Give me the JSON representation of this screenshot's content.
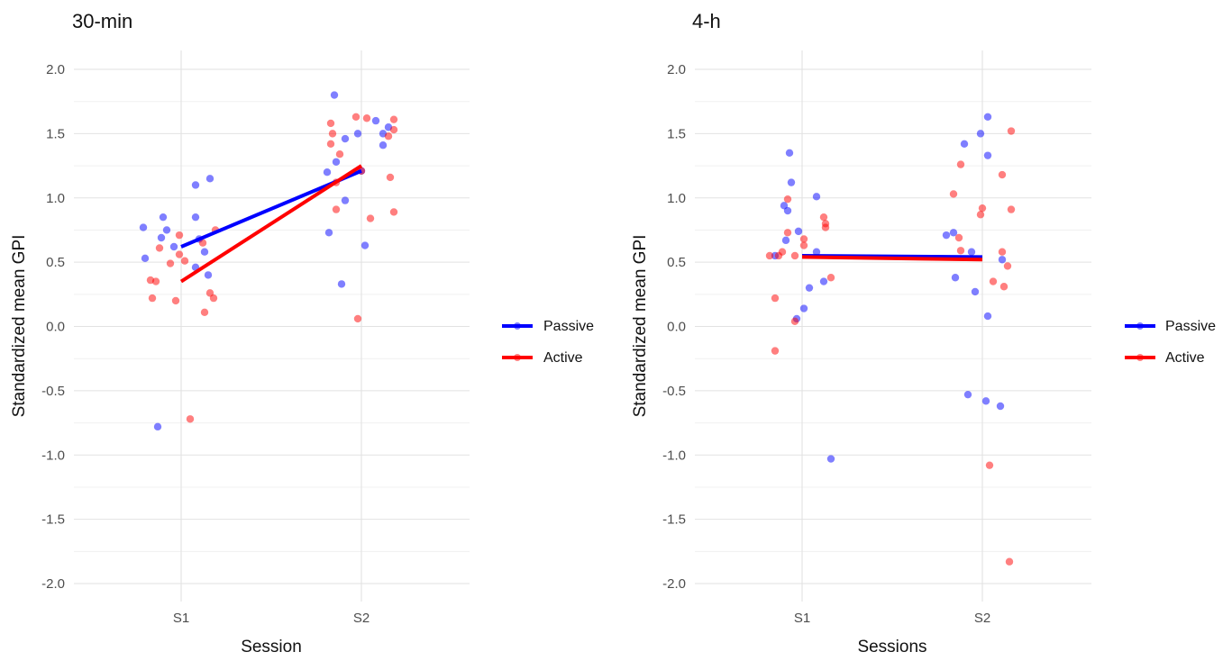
{
  "chart_data": [
    {
      "type": "scatter",
      "title": "30-min",
      "xlabel": "Session",
      "ylabel": "Standardized mean GPI",
      "categories": [
        "S1",
        "S2"
      ],
      "ylim": [
        -2.0,
        2.0
      ],
      "yticks": [
        "2.0",
        "1.5",
        "1.0",
        "0.5",
        "0.0",
        "-0.5",
        "-1.0",
        "-1.5",
        "-2.0"
      ],
      "grid": true,
      "legend": "right",
      "series": [
        {
          "name": "Passive",
          "color": "#0000ff",
          "mean": [
            0.62,
            1.21
          ],
          "points": [
            [
              0.79,
              0.77
            ],
            [
              0.8,
              0.53
            ],
            [
              0.87,
              -0.78
            ],
            [
              0.9,
              0.85
            ],
            [
              0.89,
              0.69
            ],
            [
              0.92,
              0.75
            ],
            [
              0.96,
              0.62
            ],
            [
              1.08,
              1.1
            ],
            [
              1.08,
              0.85
            ],
            [
              1.1,
              0.68
            ],
            [
              1.08,
              0.46
            ],
            [
              1.13,
              0.58
            ],
            [
              1.15,
              0.4
            ],
            [
              1.16,
              1.15
            ],
            [
              1.81,
              1.2
            ],
            [
              1.82,
              0.73
            ],
            [
              1.85,
              1.8
            ],
            [
              1.86,
              1.28
            ],
            [
              1.89,
              0.33
            ],
            [
              1.91,
              1.46
            ],
            [
              1.91,
              0.98
            ],
            [
              1.98,
              1.5
            ],
            [
              2.0,
              1.21
            ],
            [
              2.02,
              0.63
            ],
            [
              2.08,
              1.6
            ],
            [
              2.12,
              1.5
            ],
            [
              2.12,
              1.41
            ],
            [
              2.15,
              1.55
            ]
          ]
        },
        {
          "name": "Active",
          "color": "#ff0000",
          "mean": [
            0.35,
            1.25
          ],
          "points": [
            [
              0.83,
              0.36
            ],
            [
              0.84,
              0.22
            ],
            [
              0.86,
              0.35
            ],
            [
              0.88,
              0.61
            ],
            [
              0.94,
              0.49
            ],
            [
              0.97,
              0.2
            ],
            [
              0.99,
              0.71
            ],
            [
              0.99,
              0.56
            ],
            [
              1.02,
              0.51
            ],
            [
              1.05,
              -0.72
            ],
            [
              1.12,
              0.65
            ],
            [
              1.13,
              0.11
            ],
            [
              1.16,
              0.26
            ],
            [
              1.18,
              0.22
            ],
            [
              1.19,
              0.75
            ],
            [
              1.83,
              1.58
            ],
            [
              1.84,
              1.5
            ],
            [
              1.83,
              1.42
            ],
            [
              1.86,
              1.12
            ],
            [
              1.86,
              0.91
            ],
            [
              1.88,
              1.34
            ],
            [
              1.97,
              1.63
            ],
            [
              1.98,
              0.06
            ],
            [
              2.0,
              1.21
            ],
            [
              2.03,
              1.62
            ],
            [
              2.05,
              0.84
            ],
            [
              2.15,
              1.48
            ],
            [
              2.16,
              1.16
            ],
            [
              2.18,
              1.61
            ],
            [
              2.18,
              1.53
            ],
            [
              2.18,
              0.89
            ]
          ]
        }
      ]
    },
    {
      "type": "scatter",
      "title": "4-h",
      "xlabel": "Sessions",
      "ylabel": "Standardized mean GPI",
      "categories": [
        "S1",
        "S2"
      ],
      "ylim": [
        -2.0,
        2.0
      ],
      "yticks": [
        "2.0",
        "1.5",
        "1.0",
        "0.5",
        "0.0",
        "-0.5",
        "-1.0",
        "-1.5",
        "-2.0"
      ],
      "grid": true,
      "legend": "right",
      "series": [
        {
          "name": "Passive",
          "color": "#0000ff",
          "mean": [
            0.55,
            0.54
          ],
          "points": [
            [
              0.85,
              0.55
            ],
            [
              0.9,
              0.94
            ],
            [
              0.92,
              0.9
            ],
            [
              0.91,
              0.67
            ],
            [
              0.93,
              1.35
            ],
            [
              0.94,
              1.12
            ],
            [
              0.97,
              0.06
            ],
            [
              0.98,
              0.74
            ],
            [
              1.01,
              0.14
            ],
            [
              1.04,
              0.3
            ],
            [
              1.08,
              1.01
            ],
            [
              1.08,
              0.58
            ],
            [
              1.12,
              0.35
            ],
            [
              1.16,
              -1.03
            ],
            [
              1.8,
              0.71
            ],
            [
              1.84,
              0.73
            ],
            [
              1.85,
              0.38
            ],
            [
              1.9,
              1.42
            ],
            [
              1.92,
              -0.53
            ],
            [
              1.94,
              0.58
            ],
            [
              1.96,
              0.27
            ],
            [
              1.99,
              1.5
            ],
            [
              2.03,
              1.63
            ],
            [
              2.03,
              1.33
            ],
            [
              2.03,
              0.08
            ],
            [
              2.02,
              -0.58
            ],
            [
              2.1,
              -0.62
            ],
            [
              2.11,
              0.52
            ]
          ]
        },
        {
          "name": "Active",
          "color": "#ff0000",
          "mean": [
            0.54,
            0.52
          ],
          "points": [
            [
              0.82,
              0.55
            ],
            [
              0.85,
              0.22
            ],
            [
              0.85,
              -0.19
            ],
            [
              0.87,
              0.55
            ],
            [
              0.89,
              0.58
            ],
            [
              0.92,
              0.99
            ],
            [
              0.92,
              0.73
            ],
            [
              0.96,
              0.04
            ],
            [
              0.96,
              0.55
            ],
            [
              1.01,
              0.68
            ],
            [
              1.01,
              0.63
            ],
            [
              1.12,
              0.85
            ],
            [
              1.13,
              0.8
            ],
            [
              1.13,
              0.77
            ],
            [
              1.16,
              0.38
            ],
            [
              1.84,
              1.03
            ],
            [
              1.87,
              0.69
            ],
            [
              1.88,
              1.26
            ],
            [
              1.88,
              0.59
            ],
            [
              1.99,
              0.87
            ],
            [
              2.0,
              0.92
            ],
            [
              2.04,
              -1.08
            ],
            [
              2.06,
              0.35
            ],
            [
              2.11,
              1.18
            ],
            [
              2.11,
              0.58
            ],
            [
              2.12,
              0.31
            ],
            [
              2.14,
              0.47
            ],
            [
              2.16,
              1.52
            ],
            [
              2.16,
              0.91
            ],
            [
              2.15,
              -1.83
            ]
          ]
        }
      ]
    }
  ]
}
